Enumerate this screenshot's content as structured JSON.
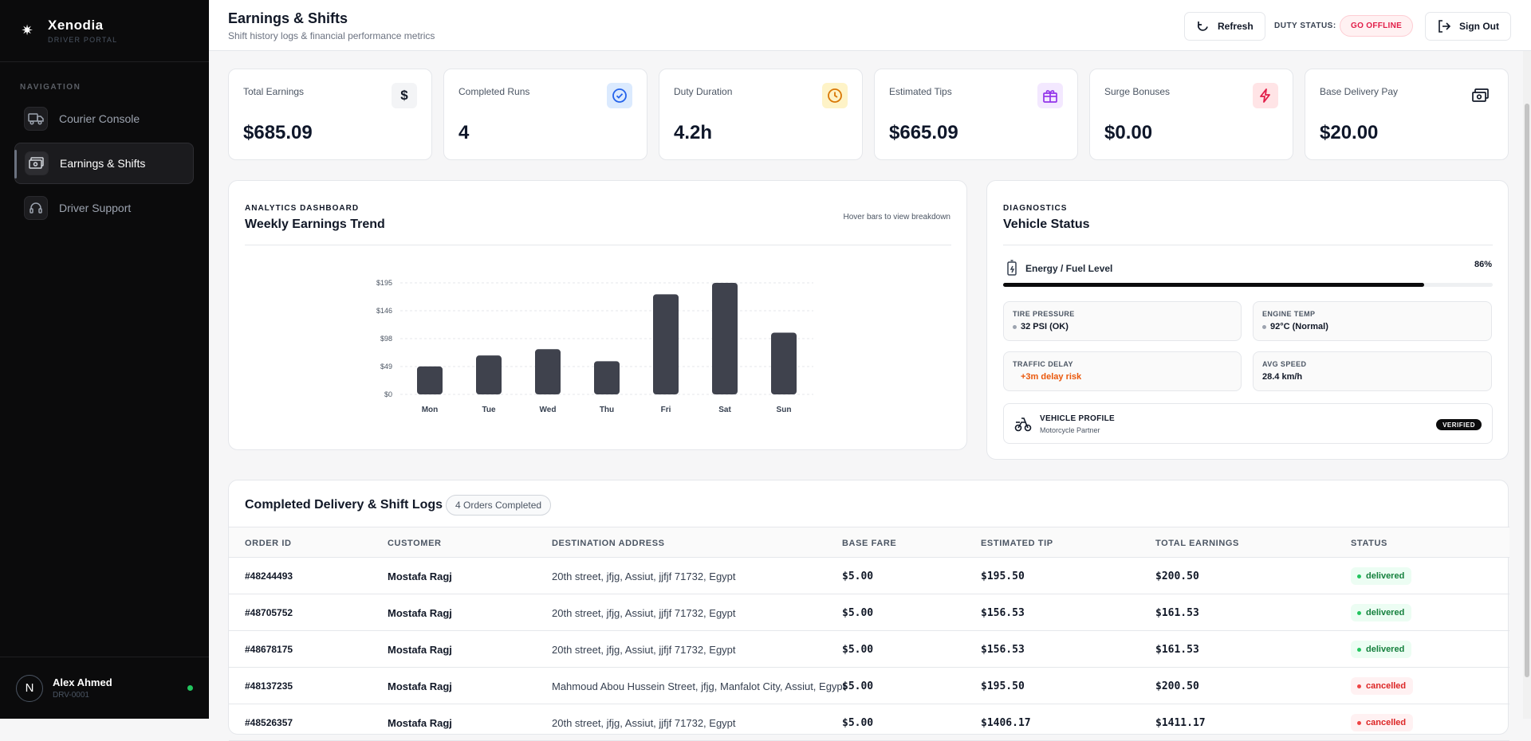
{
  "brand": {
    "name": "Xenodia",
    "subtitle": "DRIVER PORTAL"
  },
  "sidebar": {
    "heading": "NAVIGATION",
    "items": [
      {
        "label": "Courier Console",
        "icon": "truck-icon",
        "active": false
      },
      {
        "label": "Earnings & Shifts",
        "icon": "cash-icon",
        "active": true
      },
      {
        "label": "Driver Support",
        "icon": "headset-icon",
        "active": false
      }
    ],
    "user": {
      "initial": "N",
      "name": "Alex Ahmed",
      "id": "DRV-0001",
      "online_color": "#22c55e"
    }
  },
  "header": {
    "title": "Earnings & Shifts",
    "subtitle": "Shift history logs & financial performance metrics",
    "refresh_label": "Refresh",
    "duty_label": "DUTY STATUS:",
    "duty_button": "GO OFFLINE",
    "signout_label": "Sign Out"
  },
  "stats": [
    {
      "label": "Total Earnings",
      "value": "$685.09",
      "icon": "dollar-icon",
      "icon_color": "#111827",
      "icon_bg": "#f3f4f6"
    },
    {
      "label": "Completed Runs",
      "value": "4",
      "icon": "check-circle-icon",
      "icon_color": "#2563eb",
      "icon_bg": "#dbeafe"
    },
    {
      "label": "Duty Duration",
      "value": "4.2h",
      "icon": "clock-icon",
      "icon_color": "#d97706",
      "icon_bg": "#fef3c7"
    },
    {
      "label": "Estimated Tips",
      "value": "$665.09",
      "icon": "gift-icon",
      "icon_color": "#9333ea",
      "icon_bg": "#f3e8ff"
    },
    {
      "label": "Surge Bonuses",
      "value": "$0.00",
      "icon": "bolt-icon",
      "icon_color": "#e11d48",
      "icon_bg": "#ffe4e6"
    },
    {
      "label": "Base Delivery Pay",
      "value": "$20.00",
      "icon": "banknote-icon",
      "icon_color": "#111827",
      "icon_bg": "#ffffff"
    }
  ],
  "analytics": {
    "eyebrow": "ANALYTICS DASHBOARD",
    "title": "Weekly Earnings Trend",
    "hint": "Hover bars to view breakdown"
  },
  "chart_data": {
    "type": "bar",
    "categories": [
      "Mon",
      "Tue",
      "Wed",
      "Thu",
      "Fri",
      "Sat",
      "Sun"
    ],
    "values": [
      49,
      68,
      79,
      58,
      175,
      195,
      108
    ],
    "yticks": [
      "$0",
      "$49",
      "$98",
      "$146",
      "$195"
    ],
    "ylim": [
      0,
      195
    ],
    "grid": true,
    "bar_color": "#3f424d"
  },
  "diagnostics": {
    "eyebrow": "DIAGNOSTICS",
    "title": "Vehicle Status",
    "fuel_label": "Energy / Fuel Level",
    "fuel_percent_text": "86%",
    "fuel_fraction": 0.86,
    "tire_label": "TIRE PRESSURE",
    "tire_value": "32 PSI (OK)",
    "engine_label": "ENGINE TEMP",
    "engine_value": "92°C (Normal)",
    "traffic_label": "TRAFFIC DELAY",
    "traffic_value": "+3m delay risk",
    "speed_label": "AVG SPEED",
    "speed_value": "28.4 km/h",
    "profile_title": "VEHICLE PROFILE",
    "profile_sub": "Motorcycle Partner",
    "profile_badge": "VERIFIED"
  },
  "table": {
    "title": "Completed Delivery & Shift Logs",
    "badge": "4 Orders Completed",
    "columns": [
      "ORDER ID",
      "CUSTOMER",
      "DESTINATION ADDRESS",
      "BASE FARE",
      "ESTIMATED TIP",
      "TOTAL EARNINGS",
      "STATUS"
    ],
    "rows": [
      {
        "id": "#48244493",
        "customer": "Mostafa Ragj",
        "address": "20th street, jfjg, Assiut, jjfjf 71732, Egypt",
        "base": "$5.00",
        "tip": "$195.50",
        "total": "$200.50",
        "status": "delivered"
      },
      {
        "id": "#48705752",
        "customer": "Mostafa Ragj",
        "address": "20th street, jfjg, Assiut, jjfjf 71732, Egypt",
        "base": "$5.00",
        "tip": "$156.53",
        "total": "$161.53",
        "status": "delivered"
      },
      {
        "id": "#48678175",
        "customer": "Mostafa Ragj",
        "address": "20th street, jfjg, Assiut, jjfjf 71732, Egypt",
        "base": "$5.00",
        "tip": "$156.53",
        "total": "$161.53",
        "status": "delivered"
      },
      {
        "id": "#48137235",
        "customer": "Mostafa Ragj",
        "address": "Mahmoud Abou Hussein Street, jfjg, Manfalot City, Assiut, Egypt",
        "base": "$5.00",
        "tip": "$195.50",
        "total": "$200.50",
        "status": "cancelled"
      },
      {
        "id": "#48526357",
        "customer": "Mostafa Ragj",
        "address": "20th street, jfjg, Assiut, jjfjf 71732, Egypt",
        "base": "$5.00",
        "tip": "$1406.17",
        "total": "$1411.17",
        "status": "cancelled"
      }
    ]
  }
}
